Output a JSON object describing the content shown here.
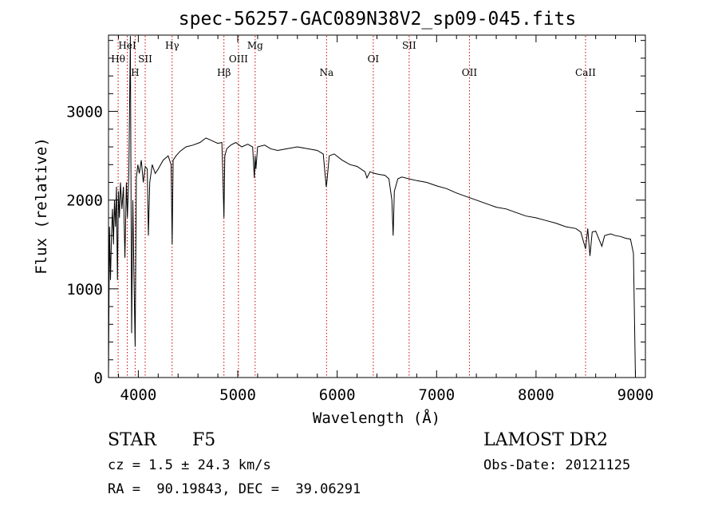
{
  "chart_data": {
    "type": "line",
    "title": "spec-56257-GAC089N38V2_sp09-045.fits",
    "xlabel": "Wavelength (Å)",
    "ylabel": "Flux (relative)",
    "xlim": [
      3700,
      9100
    ],
    "ylim": [
      0,
      3860
    ],
    "xticks": [
      4000,
      5000,
      6000,
      7000,
      8000,
      9000
    ],
    "yticks": [
      0,
      1000,
      2000,
      3000
    ],
    "grid": false,
    "line_color": "#000000",
    "marker_color": "#cc0000",
    "series": [
      {
        "x": [
          3700,
          3710,
          3720,
          3730,
          3740,
          3750,
          3760,
          3770,
          3780,
          3790,
          3800,
          3810,
          3820,
          3835,
          3850,
          3865,
          3880,
          3890,
          3905,
          3920,
          3933,
          3945,
          3955,
          3968,
          3980,
          3995,
          4010,
          4030,
          4050,
          4070,
          4090,
          4101,
          4115,
          4140,
          4170,
          4200,
          4250,
          4300,
          4330,
          4340,
          4350,
          4380,
          4420,
          4480,
          4550,
          4620,
          4680,
          4720,
          4760,
          4800,
          4840,
          4850,
          4861,
          4870,
          4890,
          4930,
          4980,
          5040,
          5100,
          5150,
          5167,
          5175,
          5183,
          5200,
          5270,
          5330,
          5400,
          5500,
          5600,
          5700,
          5800,
          5860,
          5890,
          5896,
          5920,
          5970,
          6050,
          6130,
          6200,
          6280,
          6300,
          6330,
          6380,
          6420,
          6480,
          6520,
          6550,
          6563,
          6575,
          6610,
          6650,
          6720,
          6800,
          6900,
          7000,
          7100,
          7200,
          7300,
          7400,
          7500,
          7600,
          7700,
          7800,
          7900,
          8000,
          8100,
          8200,
          8300,
          8400,
          8450,
          8498,
          8520,
          8542,
          8565,
          8600,
          8662,
          8690,
          8750,
          8800,
          8850,
          8900,
          8950,
          8980,
          9000
        ],
        "y": [
          0,
          1700,
          1100,
          1600,
          1900,
          1500,
          2000,
          1700,
          2150,
          1100,
          2100,
          1800,
          2200,
          1900,
          2150,
          1350,
          2200,
          1800,
          2300,
          3850,
          500,
          2000,
          1200,
          350,
          2250,
          2400,
          2300,
          2450,
          2200,
          2380,
          2350,
          1600,
          2200,
          2400,
          2300,
          2350,
          2450,
          2500,
          2400,
          1500,
          2450,
          2500,
          2550,
          2600,
          2620,
          2650,
          2700,
          2680,
          2660,
          2640,
          2650,
          2300,
          1800,
          2500,
          2580,
          2620,
          2650,
          2600,
          2630,
          2600,
          2250,
          2500,
          2350,
          2600,
          2620,
          2580,
          2560,
          2580,
          2600,
          2580,
          2560,
          2520,
          2150,
          2200,
          2500,
          2520,
          2450,
          2400,
          2380,
          2320,
          2250,
          2320,
          2300,
          2290,
          2280,
          2240,
          2000,
          1600,
          2100,
          2240,
          2260,
          2240,
          2220,
          2200,
          2160,
          2130,
          2080,
          2040,
          2000,
          1960,
          1920,
          1900,
          1860,
          1820,
          1800,
          1770,
          1740,
          1700,
          1680,
          1640,
          1450,
          1680,
          1370,
          1640,
          1650,
          1480,
          1600,
          1620,
          1600,
          1590,
          1570,
          1560,
          1400,
          0
        ]
      }
    ],
    "lines": [
      {
        "label": "Hθ",
        "wavelength": 3797,
        "row": 1
      },
      {
        "label": "HeI",
        "wavelength": 3889,
        "row": 0
      },
      {
        "label": "H",
        "wavelength": 3968,
        "row": 2
      },
      {
        "label": "SII",
        "wavelength": 4069,
        "row": 1
      },
      {
        "label": "Hγ",
        "wavelength": 4340,
        "row": 0
      },
      {
        "label": "Hβ",
        "wavelength": 4861,
        "row": 2
      },
      {
        "label": "OIII",
        "wavelength": 5007,
        "row": 1
      },
      {
        "label": "Mg",
        "wavelength": 5175,
        "row": 0
      },
      {
        "label": "Na",
        "wavelength": 5893,
        "row": 2
      },
      {
        "label": "OI",
        "wavelength": 6363,
        "row": 1
      },
      {
        "label": "SII",
        "wavelength": 6724,
        "row": 0
      },
      {
        "label": "OII",
        "wavelength": 7330,
        "row": 2
      },
      {
        "label": "CaII",
        "wavelength": 8498,
        "row": 2
      }
    ]
  },
  "info": {
    "object_class": "STAR",
    "subclass": "F5",
    "survey": "LAMOST DR2",
    "redshift_text": "cz = 1.5 ± 24.3 km/s",
    "obs_date_text": "Obs-Date: 20121125",
    "coords_text": "RA =  90.19843, DEC =  39.06291"
  }
}
